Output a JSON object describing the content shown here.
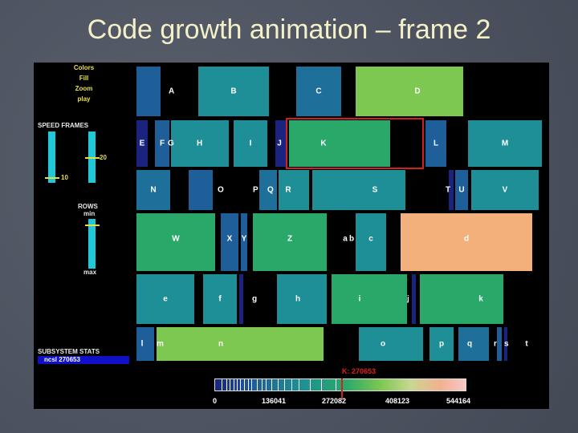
{
  "slide": {
    "title": "Code growth animation – frame 2"
  },
  "controls": {
    "menu": [
      "Colors",
      "Fill",
      "Zoom",
      "play"
    ],
    "speed_frames_label": "SPEED FRAMES",
    "speed_value": "10",
    "frames_value": "20",
    "rows_label": "ROWS",
    "rows_min": "min",
    "rows_max": "max",
    "subsystem_label": "SUBSYSTEM STATS",
    "subsystem_value": "ncsl 270653"
  },
  "colors": {
    "navy": "#1a237e",
    "blue": "#1e5f9a",
    "teal": "#1e8f96",
    "green": "#2aa86a",
    "lime": "#7cc850",
    "peach": "#f4b07a",
    "highlight": "#d02020"
  },
  "treemap": {
    "selected": "K",
    "cells": [
      "A",
      "B",
      "C",
      "D",
      "E",
      "F",
      "G",
      "H",
      "I",
      "J",
      "K",
      "L",
      "M",
      "N",
      "O",
      "P",
      "Q",
      "R",
      "S",
      "T",
      "U",
      "V",
      "W",
      "X",
      "Y",
      "Z",
      "a",
      "b",
      "c",
      "d",
      "e",
      "f",
      "g",
      "h",
      "i",
      "j",
      "k",
      "l",
      "m",
      "n",
      "o",
      "p",
      "q",
      "r",
      "s",
      "t"
    ]
  },
  "legend": {
    "ticks": [
      "0",
      "136041",
      "272082",
      "408123",
      "544164"
    ],
    "marker_label": "K: 270653"
  }
}
